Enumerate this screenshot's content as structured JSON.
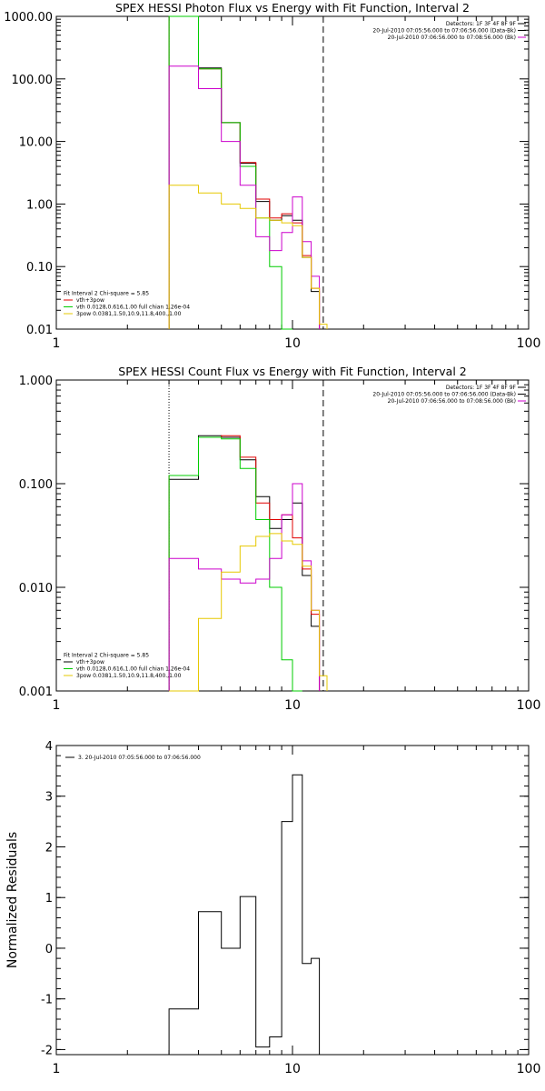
{
  "colors": {
    "black": "#000000",
    "red": "#e00000",
    "green": "#00cc00",
    "magenta": "#cc00cc",
    "yellow": "#e6c800"
  },
  "chart_data": [
    {
      "type": "line",
      "title": "SPEX HESSI Photon Flux vs Energy with Fit Function, Interval 2",
      "xlabel": "",
      "ylabel": "",
      "xscale": "log",
      "yscale": "log",
      "xlim": [
        1,
        100
      ],
      "ylim": [
        0.01,
        1000
      ],
      "xticks": [
        1,
        10,
        100
      ],
      "xtick_labels": [
        "1",
        "10",
        "100"
      ],
      "yticks": [
        0.01,
        0.1,
        1,
        10,
        100,
        1000
      ],
      "ytick_labels": [
        "0.01",
        "0.10",
        "1.00",
        "10.00",
        "100.00",
        "1000.00"
      ],
      "x_edges": [
        3,
        4,
        5,
        6,
        7,
        8,
        9,
        10,
        11,
        12,
        13,
        14,
        15
      ],
      "vlines": [
        {
          "x": 3,
          "style": "dotted",
          "color": "yellow"
        },
        {
          "x": 13.5,
          "style": "dashed",
          "color": "black"
        }
      ],
      "header_lines": [
        {
          "text": "Detectors: 1F 3F 4F 8F 9F",
          "color": "black"
        },
        {
          "text": "20-Jul-2010 07:05:56.000 to 07:06:56.000 (Data-Bk)",
          "color": "black"
        },
        {
          "text": "20-Jul-2010 07:06:56.000 to 07:08:56.000 (Bk)",
          "color": "magenta"
        }
      ],
      "legend_position": "bottom-left",
      "legend_title": "Fit Interval 2   Chi-square = 5.85",
      "legend": [
        {
          "label": "vth+3pow",
          "color": "red"
        },
        {
          "label": "vth 0.0128,0.616,1.00  full chian 1.26e-04",
          "color": "green"
        },
        {
          "label": "3pow 0.0381,1.50,10.9,11.8,400.,1.00",
          "color": "yellow"
        }
      ],
      "series": [
        {
          "color": "black",
          "values": [
            1000,
            150,
            20,
            4.5,
            1.1,
            0.55,
            0.65,
            0.55,
            0.14,
            0.04,
            null,
            null
          ]
        },
        {
          "color": "red",
          "values": [
            1000,
            145,
            20,
            4.6,
            1.2,
            0.6,
            0.7,
            0.5,
            0.15,
            0.045,
            null,
            null
          ]
        },
        {
          "color": "green",
          "values": [
            1000,
            145,
            20,
            4.0,
            0.6,
            0.1,
            0.01,
            null,
            null,
            null,
            null,
            null
          ]
        },
        {
          "color": "magenta",
          "values": [
            160,
            70,
            10,
            2.0,
            0.3,
            0.18,
            0.35,
            1.3,
            0.25,
            0.07,
            null,
            null
          ]
        },
        {
          "color": "yellow",
          "values": [
            2.0,
            1.5,
            1.0,
            0.85,
            0.6,
            0.55,
            0.5,
            0.45,
            0.14,
            0.045,
            0.012,
            null
          ]
        }
      ]
    },
    {
      "type": "line",
      "title": "SPEX HESSI Count Flux vs Energy with Fit Function, Interval 2",
      "xlabel": "",
      "ylabel": "",
      "xscale": "log",
      "yscale": "log",
      "xlim": [
        1,
        100
      ],
      "ylim": [
        0.001,
        1
      ],
      "xticks": [
        1,
        10,
        100
      ],
      "xtick_labels": [
        "1",
        "10",
        "100"
      ],
      "yticks": [
        0.001,
        0.01,
        0.1,
        1
      ],
      "ytick_labels": [
        "0.001",
        "0.010",
        "0.100",
        "1.000"
      ],
      "x_edges": [
        3,
        4,
        5,
        6,
        7,
        8,
        9,
        10,
        11,
        12,
        13,
        14,
        15
      ],
      "vlines": [
        {
          "x": 3,
          "style": "dotted",
          "color": "black"
        },
        {
          "x": 13.5,
          "style": "dashed",
          "color": "black"
        }
      ],
      "header_lines": [
        {
          "text": "Detectors: 1F 3F 4F 8F 9F",
          "color": "black"
        },
        {
          "text": "20-Jul-2010 07:05:56.000 to 07:06:56.000 (Data-Bk)",
          "color": "black"
        },
        {
          "text": "20-Jul-2010 07:06:56.000 to 07:08:56.000 (Bk)",
          "color": "magenta"
        }
      ],
      "legend_position": "bottom-left",
      "legend_title": "Fit Interval 2   Chi-square = 5.85",
      "legend": [
        {
          "label": "vth+3pow",
          "color": "black"
        },
        {
          "label": "vth 0.0128,0.616,1.00  full chian 1.26e-04",
          "color": "green"
        },
        {
          "label": "3pow 0.0381,1.50,10.9,11.8,400.,1.00",
          "color": "yellow"
        }
      ],
      "series": [
        {
          "color": "black",
          "values": [
            0.11,
            0.29,
            0.28,
            0.17,
            0.075,
            0.037,
            0.045,
            0.065,
            0.013,
            0.0042,
            null,
            null
          ]
        },
        {
          "color": "red",
          "values": [
            0.12,
            0.28,
            0.29,
            0.18,
            0.065,
            0.045,
            0.05,
            0.03,
            0.015,
            0.0055,
            null,
            null
          ]
        },
        {
          "color": "green",
          "values": [
            0.12,
            0.28,
            0.27,
            0.14,
            0.045,
            0.01,
            0.002,
            0.0005,
            null,
            null,
            null,
            null
          ]
        },
        {
          "color": "magenta",
          "values": [
            0.019,
            0.015,
            0.012,
            0.011,
            0.012,
            0.019,
            0.05,
            0.1,
            0.018,
            0.006,
            null,
            null
          ]
        },
        {
          "color": "yellow",
          "values": [
            0.001,
            0.005,
            0.014,
            0.025,
            0.031,
            0.033,
            0.028,
            0.026,
            0.016,
            0.006,
            0.0014,
            null
          ]
        }
      ]
    },
    {
      "type": "line",
      "title": "",
      "xlabel": "",
      "ylabel": "Normalized Residuals",
      "xscale": "log",
      "yscale": "linear",
      "xlim": [
        1,
        100
      ],
      "ylim": [
        -2.1,
        4
      ],
      "xticks": [
        1,
        10,
        100
      ],
      "xtick_labels": [
        "1",
        "10",
        "100"
      ],
      "yticks": [
        -2,
        -1,
        0,
        1,
        2,
        3,
        4
      ],
      "ytick_labels": [
        "-2",
        "-1",
        "0",
        "1",
        "2",
        "3",
        "4"
      ],
      "x_edges": [
        3,
        4,
        5,
        6,
        7,
        8,
        9,
        10,
        11,
        12,
        13
      ],
      "legend_position": "top-left",
      "legend": [
        {
          "label": "3. 20-Jul-2010 07:05:56.000 to 07:06:56.000",
          "color": "black"
        }
      ],
      "series": [
        {
          "color": "black",
          "values": [
            -1.2,
            0.72,
            0.0,
            1.02,
            -1.95,
            -1.75,
            2.5,
            3.42,
            -0.3,
            -0.2
          ]
        }
      ]
    }
  ]
}
